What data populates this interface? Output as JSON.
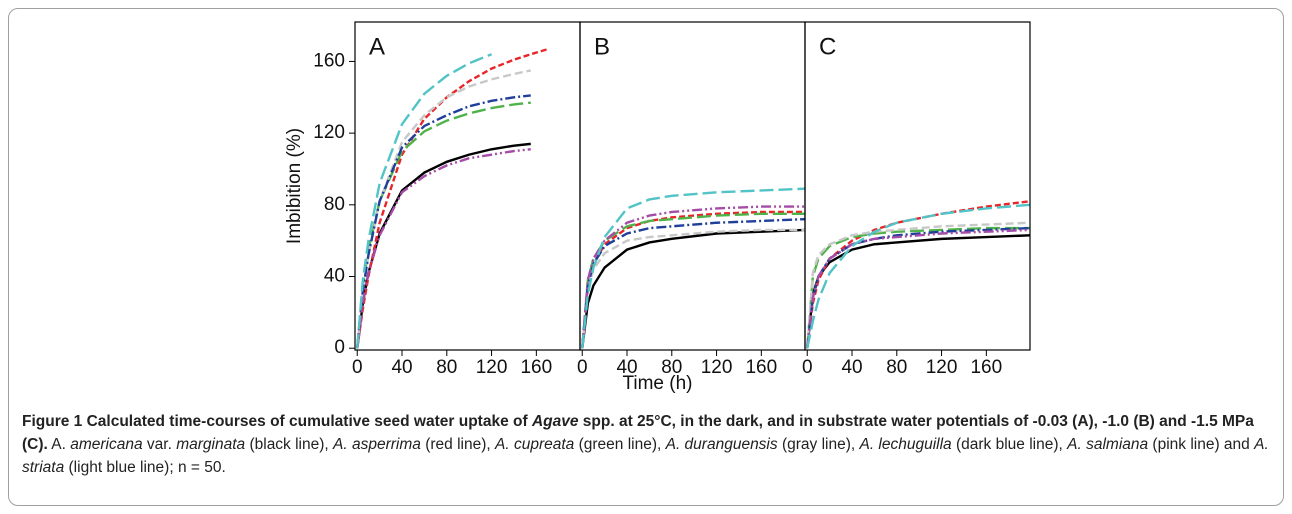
{
  "chart_data": [
    {
      "type": "line",
      "panel_label": "A",
      "y_label": "Imbibition (%)",
      "x": [
        0,
        5,
        10,
        20,
        40,
        60,
        80,
        100,
        120,
        140,
        155,
        171
      ],
      "xlim": [
        -2,
        199
      ],
      "ylim": [
        -1,
        182
      ],
      "xticks": [
        0,
        40,
        80,
        120,
        160
      ],
      "yticks": [
        0,
        40,
        80,
        120,
        160
      ],
      "series": [
        {
          "color": "#000000",
          "dash": "solid",
          "values": [
            0,
            25,
            42,
            64,
            88,
            98,
            104,
            108,
            111,
            113,
            114,
            null
          ]
        },
        {
          "color": "#e8262a",
          "dash": "short",
          "values": [
            0,
            22,
            40,
            70,
            108,
            128,
            140,
            149,
            156,
            161,
            164,
            167
          ]
        },
        {
          "color": "#4fb34a",
          "dash": "long",
          "values": [
            0,
            35,
            55,
            82,
            110,
            121,
            127,
            131,
            134,
            136,
            137,
            null
          ]
        },
        {
          "color": "#c8c8c8",
          "dash": "medium",
          "values": [
            0,
            32,
            52,
            82,
            115,
            130,
            140,
            146,
            150,
            153,
            155,
            null
          ]
        },
        {
          "color": "#1f3f9a",
          "dash": "dashdot",
          "values": [
            0,
            32,
            52,
            82,
            112,
            124,
            130,
            135,
            138,
            140,
            141,
            null
          ]
        },
        {
          "color": "#a44ca8",
          "dash": "dashdotdot",
          "values": [
            0,
            25,
            42,
            63,
            87,
            96,
            102,
            106,
            108,
            110,
            111,
            null
          ]
        },
        {
          "color": "#52c3c6",
          "dash": "long",
          "values": [
            0,
            38,
            60,
            92,
            125,
            142,
            152,
            159,
            164,
            null,
            null,
            null
          ]
        }
      ]
    },
    {
      "type": "line",
      "panel_label": "B",
      "x_label": "Time (h)",
      "x": [
        0,
        5,
        10,
        20,
        40,
        60,
        80,
        120,
        160,
        199
      ],
      "xlim": [
        -2,
        199
      ],
      "ylim": [
        -1,
        182
      ],
      "xticks": [
        0,
        40,
        80,
        120,
        160
      ],
      "series": [
        {
          "color": "#000000",
          "dash": "solid",
          "values": [
            0,
            25,
            35,
            45,
            55,
            59,
            61,
            64,
            65,
            66
          ]
        },
        {
          "color": "#e8262a",
          "dash": "short",
          "values": [
            0,
            35,
            47,
            58,
            67,
            71,
            73,
            75,
            76,
            76
          ]
        },
        {
          "color": "#4fb34a",
          "dash": "long",
          "values": [
            0,
            38,
            50,
            60,
            68,
            71,
            72,
            74,
            75,
            75
          ]
        },
        {
          "color": "#c8c8c8",
          "dash": "medium",
          "values": [
            0,
            33,
            44,
            53,
            60,
            62,
            63,
            65,
            66,
            66
          ]
        },
        {
          "color": "#1f3f9a",
          "dash": "dashdot",
          "values": [
            0,
            35,
            47,
            57,
            64,
            67,
            68,
            70,
            71,
            72
          ]
        },
        {
          "color": "#a44ca8",
          "dash": "dashdotdot",
          "values": [
            0,
            38,
            50,
            60,
            70,
            74,
            76,
            78,
            79,
            79
          ]
        },
        {
          "color": "#52c3c6",
          "dash": "long",
          "values": [
            0,
            30,
            45,
            62,
            78,
            83,
            85,
            87,
            88,
            89
          ]
        }
      ]
    },
    {
      "type": "line",
      "panel_label": "C",
      "x": [
        0,
        5,
        10,
        20,
        40,
        60,
        80,
        120,
        160,
        199
      ],
      "xlim": [
        -2,
        199
      ],
      "ylim": [
        -1,
        182
      ],
      "xticks": [
        0,
        40,
        80,
        120,
        160
      ],
      "series": [
        {
          "color": "#000000",
          "dash": "solid",
          "values": [
            0,
            30,
            40,
            48,
            55,
            58,
            59,
            61,
            62,
            63
          ]
        },
        {
          "color": "#e8262a",
          "dash": "short",
          "values": [
            0,
            25,
            38,
            50,
            60,
            66,
            70,
            75,
            79,
            82
          ]
        },
        {
          "color": "#4fb34a",
          "dash": "long",
          "values": [
            0,
            40,
            50,
            57,
            62,
            64,
            65,
            66,
            67,
            67
          ]
        },
        {
          "color": "#c8c8c8",
          "dash": "medium",
          "values": [
            0,
            42,
            52,
            58,
            63,
            65,
            66,
            68,
            69,
            70
          ]
        },
        {
          "color": "#1f3f9a",
          "dash": "dashdot",
          "values": [
            0,
            28,
            40,
            50,
            58,
            61,
            63,
            65,
            66,
            67
          ]
        },
        {
          "color": "#a44ca8",
          "dash": "dashdotdot",
          "values": [
            0,
            28,
            40,
            50,
            58,
            61,
            62,
            64,
            65,
            66
          ]
        },
        {
          "color": "#52c3c6",
          "dash": "long",
          "values": [
            0,
            15,
            27,
            42,
            57,
            65,
            70,
            75,
            78,
            80
          ]
        }
      ]
    }
  ],
  "caption": {
    "runs": [
      "Figure 1 Calculated time-courses of cumulative seed water uptake of ",
      "Agave",
      " spp. at 25°C, in the dark, and in substrate water potentials of -0.03 (A), -1.0 (B) and -1.5 MPa (C).",
      " A. ",
      "americana",
      " var. ",
      "marginata",
      " (black line), ",
      "A. asperrima",
      " (red line), ",
      "A. cupreata",
      " (green line), ",
      "A. duranguensis",
      " (gray line), ",
      "A. lechuguilla",
      " (dark blue line), ",
      "A. salmiana",
      " (pink line) and ",
      "A. striata",
      " (light blue line); n = 50."
    ]
  }
}
